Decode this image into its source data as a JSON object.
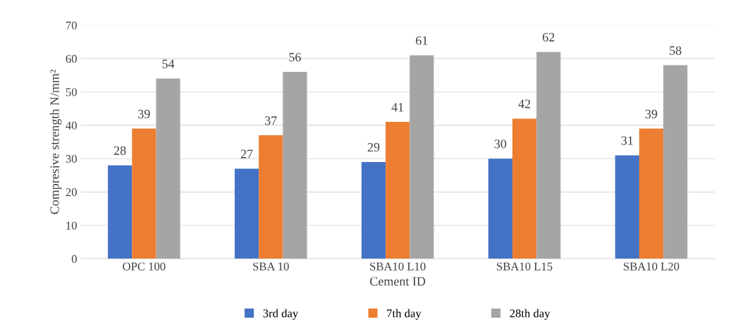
{
  "chart_data": {
    "type": "bar",
    "xlabel": "Cement ID",
    "ylabel": "Compresive strength N/mm²",
    "categories": [
      "OPC 100",
      "SBA 10",
      "SBA10 L10",
      "SBA10 L15",
      "SBA10 L20"
    ],
    "series": [
      {
        "name": "3rd day",
        "color": "#4472c4",
        "values": [
          28,
          27,
          29,
          30,
          31
        ]
      },
      {
        "name": "7th day",
        "color": "#ed7d31",
        "values": [
          39,
          37,
          41,
          42,
          39
        ]
      },
      {
        "name": "28th day",
        "color": "#a5a5a5",
        "values": [
          54,
          56,
          61,
          62,
          58
        ]
      }
    ],
    "ylim": [
      0,
      70
    ],
    "yticks": [
      0,
      10,
      20,
      30,
      40,
      50,
      60,
      70
    ],
    "grid": "y",
    "legend": "bottom",
    "data_labels": true
  }
}
